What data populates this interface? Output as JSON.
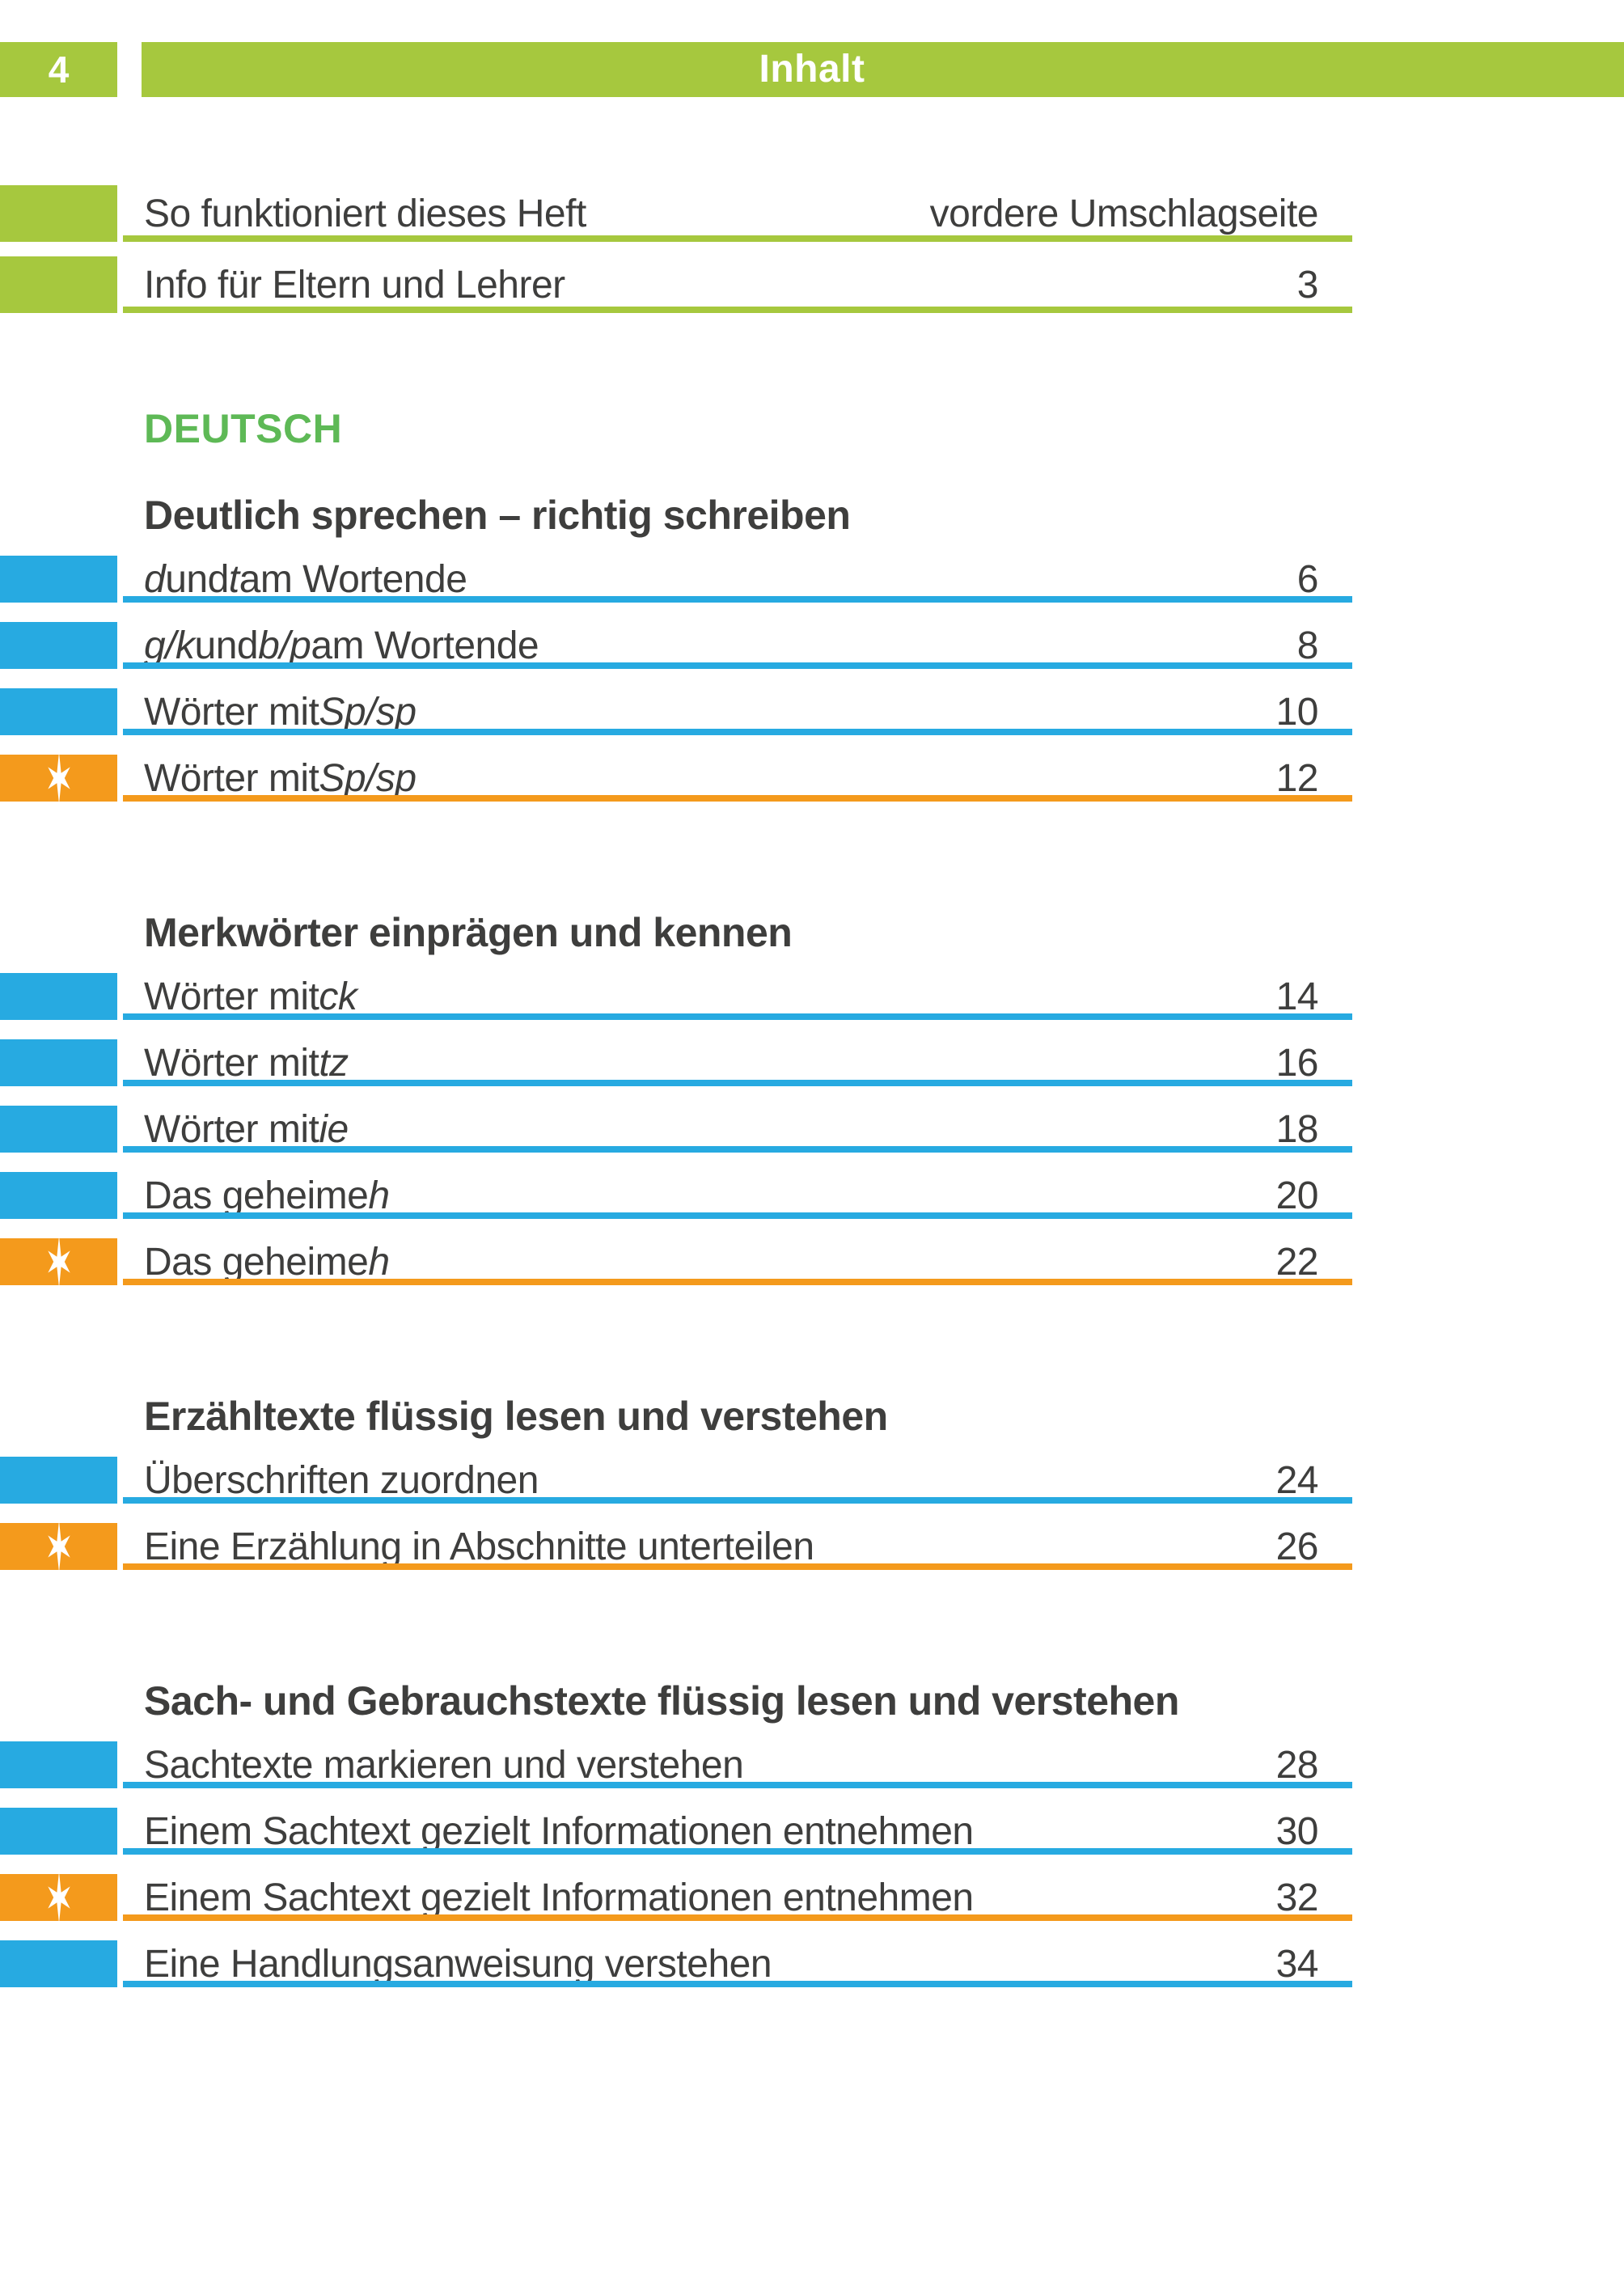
{
  "header": {
    "page_number": "4",
    "title": "Inhalt"
  },
  "colors": {
    "green": "#a6c83e",
    "blue": "#27aae1",
    "orange": "#f49a1c",
    "subject_green": "#5eb956",
    "text": "#3e3e3d",
    "header_text": "#ffffff"
  },
  "icons": {
    "star": "star-icon"
  },
  "intro": {
    "entries": [
      {
        "label": [
          {
            "t": "So funktioniert dieses Heft",
            "i": false
          }
        ],
        "page": "vordere Umschlagseite",
        "style": "green",
        "star": false
      },
      {
        "label": [
          {
            "t": "Info für Eltern und Lehrer",
            "i": false
          }
        ],
        "page": "3",
        "style": "green",
        "star": false
      }
    ]
  },
  "subject": {
    "label": "DEUTSCH"
  },
  "sections": [
    {
      "title": "Deutlich sprechen – richtig schreiben",
      "entries": [
        {
          "label": [
            {
              "t": "d",
              "i": true
            },
            {
              "t": " und ",
              "i": false
            },
            {
              "t": "t",
              "i": true
            },
            {
              "t": " am Wortende",
              "i": false
            }
          ],
          "page": "6",
          "style": "blue",
          "star": false
        },
        {
          "label": [
            {
              "t": "g/k",
              "i": true
            },
            {
              "t": " und ",
              "i": false
            },
            {
              "t": "b/p",
              "i": true
            },
            {
              "t": " am Wortende",
              "i": false
            }
          ],
          "page": "8",
          "style": "blue",
          "star": false
        },
        {
          "label": [
            {
              "t": "Wörter mit ",
              "i": false
            },
            {
              "t": "Sp/sp",
              "i": true
            }
          ],
          "page": "10",
          "style": "blue",
          "star": false
        },
        {
          "label": [
            {
              "t": "Wörter mit ",
              "i": false
            },
            {
              "t": "Sp/sp",
              "i": true
            }
          ],
          "page": "12",
          "style": "orange",
          "star": true
        }
      ]
    },
    {
      "title": "Merkwörter einprägen und kennen",
      "entries": [
        {
          "label": [
            {
              "t": "Wörter mit ",
              "i": false
            },
            {
              "t": "ck",
              "i": true
            }
          ],
          "page": "14",
          "style": "blue",
          "star": false
        },
        {
          "label": [
            {
              "t": "Wörter mit ",
              "i": false
            },
            {
              "t": "tz",
              "i": true
            }
          ],
          "page": "16",
          "style": "blue",
          "star": false
        },
        {
          "label": [
            {
              "t": "Wörter mit ",
              "i": false
            },
            {
              "t": "ie",
              "i": true
            }
          ],
          "page": "18",
          "style": "blue",
          "star": false
        },
        {
          "label": [
            {
              "t": "Das geheime ",
              "i": false
            },
            {
              "t": "h",
              "i": true
            }
          ],
          "page": "20",
          "style": "blue",
          "star": false
        },
        {
          "label": [
            {
              "t": "Das geheime ",
              "i": false
            },
            {
              "t": "h",
              "i": true
            }
          ],
          "page": "22",
          "style": "orange",
          "star": true
        }
      ]
    },
    {
      "title": "Erzähltexte flüssig lesen und verstehen",
      "entries": [
        {
          "label": [
            {
              "t": "Überschriften zuordnen",
              "i": false
            }
          ],
          "page": "24",
          "style": "blue",
          "star": false
        },
        {
          "label": [
            {
              "t": "Eine Erzählung in Abschnitte unterteilen",
              "i": false
            }
          ],
          "page": "26",
          "style": "orange",
          "star": true
        }
      ]
    },
    {
      "title": "Sach- und Gebrauchstexte flüssig lesen und verstehen",
      "entries": [
        {
          "label": [
            {
              "t": "Sachtexte markieren und verstehen",
              "i": false
            }
          ],
          "page": "28",
          "style": "blue",
          "star": false
        },
        {
          "label": [
            {
              "t": "Einem Sachtext gezielt Informationen entnehmen",
              "i": false
            }
          ],
          "page": "30",
          "style": "blue",
          "star": false
        },
        {
          "label": [
            {
              "t": "Einem Sachtext gezielt Informationen entnehmen",
              "i": false
            }
          ],
          "page": "32",
          "style": "orange",
          "star": true
        },
        {
          "label": [
            {
              "t": "Eine Handlungsanweisung verstehen",
              "i": false
            }
          ],
          "page": "34",
          "style": "blue",
          "star": false
        }
      ]
    }
  ]
}
